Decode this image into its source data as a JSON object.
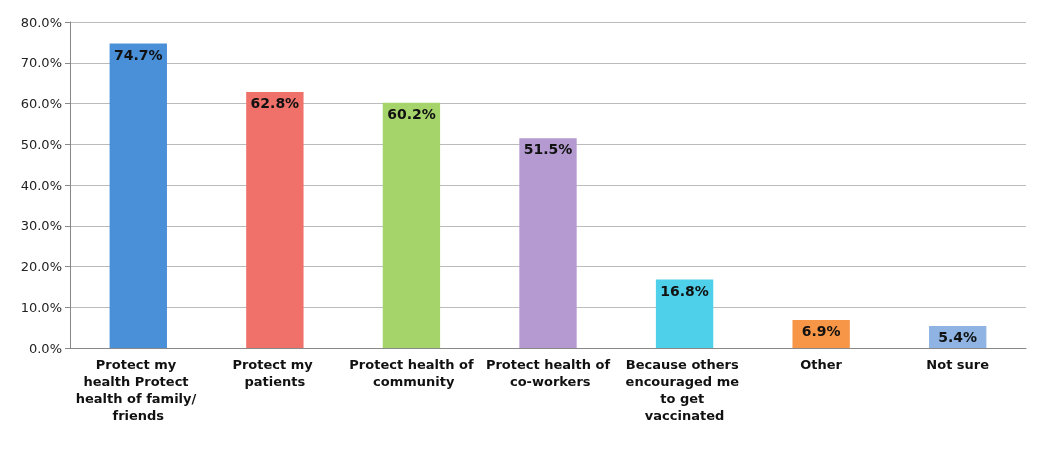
{
  "chart_data": {
    "type": "bar",
    "categories": [
      "Protect my health Protect health of family/ friends",
      "Protect my patients",
      "Protect health of community",
      "Protect health of co-workers",
      "Because others encouraged me to get vaccinated",
      "Other",
      "Not sure"
    ],
    "values": [
      74.7,
      62.8,
      60.2,
      51.5,
      16.8,
      6.9,
      5.4
    ],
    "value_labels": [
      "74.7%",
      "62.8%",
      "60.2%",
      "51.5%",
      "16.8%",
      "6.9%",
      "5.4%"
    ],
    "colors": [
      "#4a90d9",
      "#f0706a",
      "#a5d46a",
      "#b49ad0",
      "#4fd0ea",
      "#f79646",
      "#8fb4e3"
    ],
    "ylim": [
      0,
      80
    ],
    "yticks": [
      {
        "value": 0,
        "label": "0.0%"
      },
      {
        "value": 10,
        "label": "10.0%"
      },
      {
        "value": 20,
        "label": "20.0%"
      },
      {
        "value": 30,
        "label": "30.0%"
      },
      {
        "value": 40,
        "label": "40.0%"
      },
      {
        "value": 50,
        "label": "50.0%"
      },
      {
        "value": 60,
        "label": "60.0%"
      },
      {
        "value": 70,
        "label": "70.0%"
      },
      {
        "value": 80,
        "label": "80.0%"
      }
    ],
    "grid": "y"
  }
}
